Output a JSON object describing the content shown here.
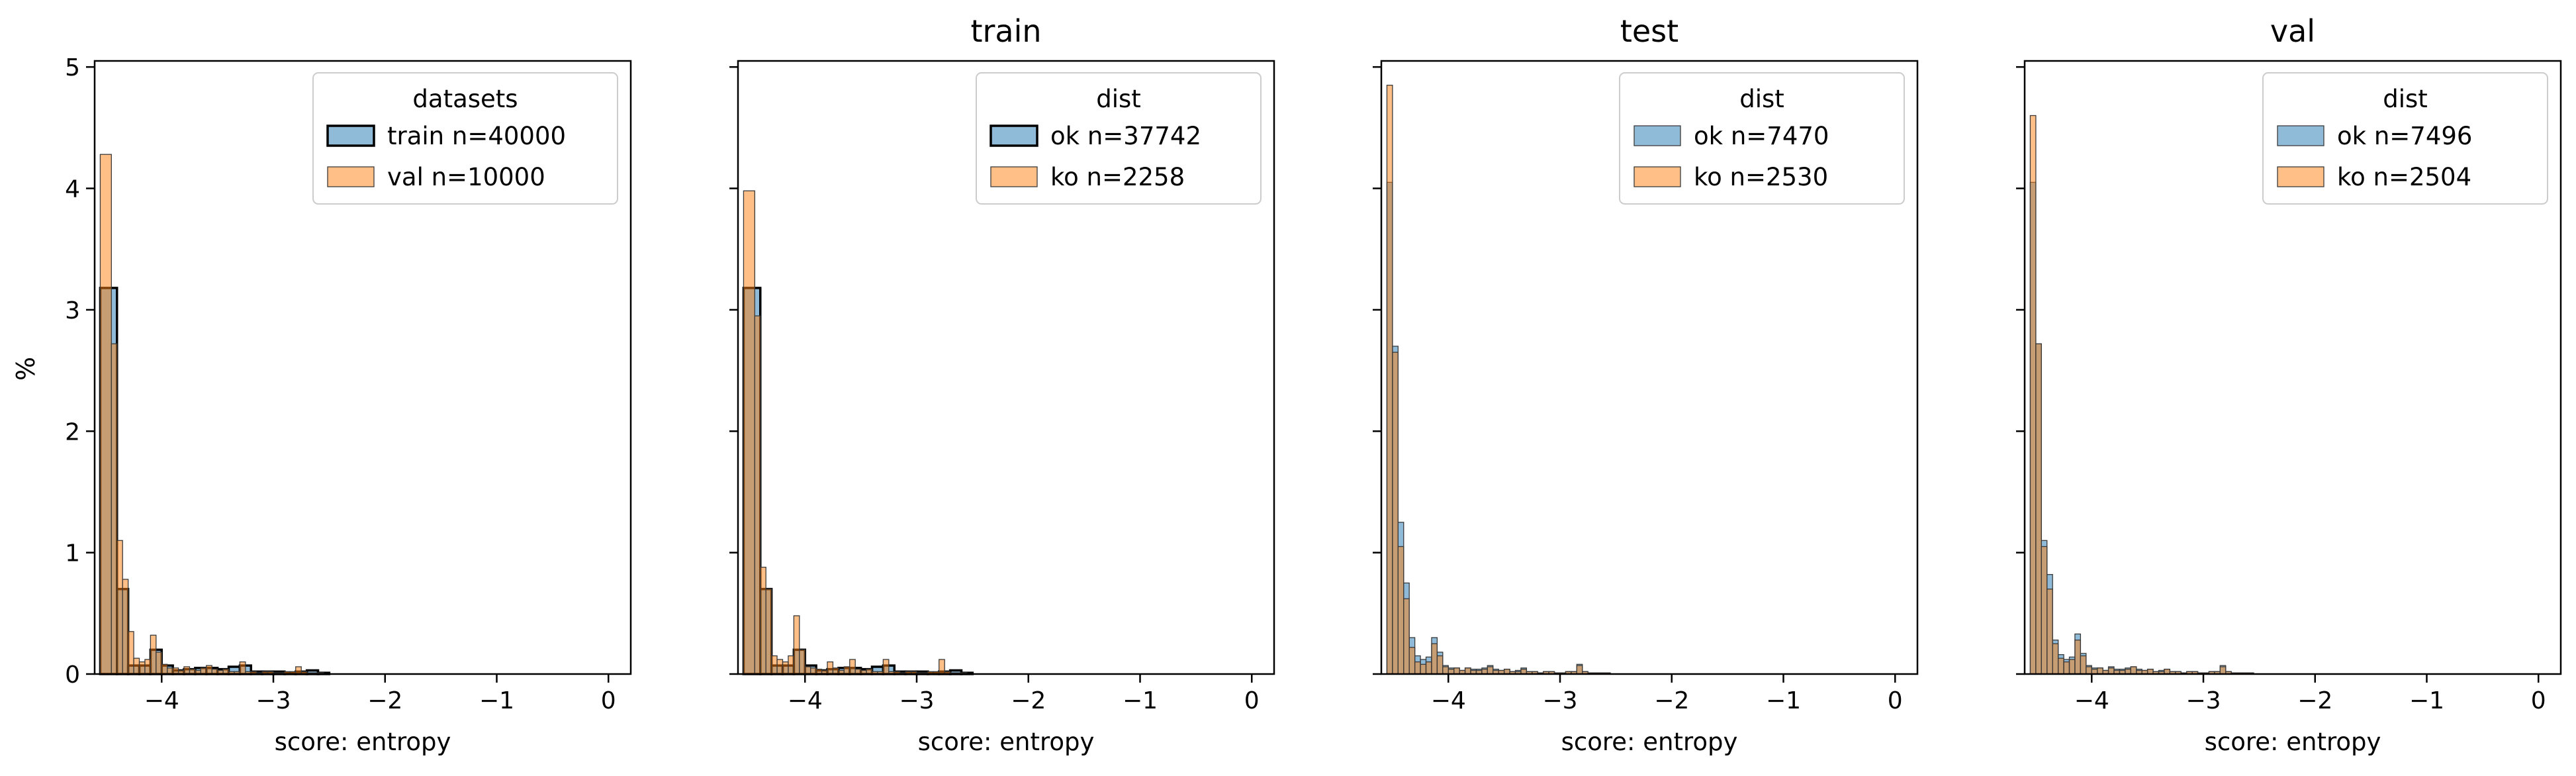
{
  "figure": {
    "shared_y_label": "%",
    "x_label": "score: entropy"
  },
  "chart_data": [
    {
      "type": "bar",
      "title": "",
      "xlabel": "score: entropy",
      "ylabel": "%",
      "xlim": [
        -4.6,
        0.2
      ],
      "ylim": [
        0,
        5.05
      ],
      "x_ticks": [
        -4,
        -3,
        -2,
        -1,
        0
      ],
      "y_ticks": [
        0,
        1,
        2,
        3,
        4,
        5
      ],
      "legend": {
        "title": "datasets",
        "placement": "top-right"
      },
      "series": [
        {
          "name": "train n=40000",
          "color": "#1f77b4",
          "outlined": true,
          "bin_edges": [
            -4.55,
            -4.4,
            -4.3,
            -4.2,
            -4.1,
            -4.0,
            -3.9,
            -3.8,
            -3.7,
            -3.6,
            -3.5,
            -3.4,
            -3.3,
            -3.2,
            -3.1,
            -3.0,
            -2.9,
            -2.8,
            -2.7,
            -2.6,
            -2.5
          ],
          "values": [
            3.18,
            0.7,
            0.07,
            0.07,
            0.2,
            0.07,
            0.03,
            0.04,
            0.05,
            0.05,
            0.04,
            0.06,
            0.07,
            0.02,
            0.02,
            0.02,
            0.01,
            0.02,
            0.03,
            0.01
          ]
        },
        {
          "name": "val n=10000",
          "color": "#ff7f0e",
          "outlined": false,
          "bin_edges": [
            -4.55,
            -4.45,
            -4.4,
            -4.35,
            -4.3,
            -4.25,
            -4.2,
            -4.15,
            -4.1,
            -4.05,
            -4.0,
            -3.95,
            -3.9,
            -3.85,
            -3.8,
            -3.75,
            -3.7,
            -3.65,
            -3.6,
            -3.55,
            -3.5,
            -3.45,
            -3.4,
            -3.35,
            -3.3,
            -3.25,
            -3.2,
            -3.15,
            -3.1,
            -3.05,
            -3.0,
            -2.95,
            -2.9,
            -2.85,
            -2.8,
            -2.75,
            -2.7,
            -2.65,
            -2.6,
            -2.55
          ],
          "values": [
            4.28,
            2.72,
            1.1,
            0.78,
            0.35,
            0.13,
            0.1,
            0.12,
            0.32,
            0.18,
            0.08,
            0.05,
            0.05,
            0.03,
            0.06,
            0.04,
            0.03,
            0.05,
            0.07,
            0.04,
            0.03,
            0.04,
            0.02,
            0.02,
            0.1,
            0.02,
            0.02,
            0.01,
            0.02,
            0.02,
            0.01,
            0.01,
            0.02,
            0.02,
            0.06,
            0.02,
            0.01,
            0.01,
            0.01
          ]
        }
      ]
    },
    {
      "type": "bar",
      "title": "train",
      "xlabel": "score: entropy",
      "xlim": [
        -4.6,
        0.2
      ],
      "ylim": [
        0,
        5.05
      ],
      "x_ticks": [
        -4,
        -3,
        -2,
        -1,
        0
      ],
      "y_ticks": [
        0,
        1,
        2,
        3,
        4,
        5
      ],
      "legend": {
        "title": "dist",
        "placement": "top-right"
      },
      "series": [
        {
          "name": "ok n=37742",
          "color": "#1f77b4",
          "outlined": true,
          "bin_edges": [
            -4.55,
            -4.4,
            -4.3,
            -4.2,
            -4.1,
            -4.0,
            -3.9,
            -3.8,
            -3.7,
            -3.6,
            -3.5,
            -3.4,
            -3.3,
            -3.2,
            -3.1,
            -3.0,
            -2.9,
            -2.8,
            -2.7,
            -2.6,
            -2.5
          ],
          "values": [
            3.18,
            0.7,
            0.07,
            0.07,
            0.2,
            0.07,
            0.03,
            0.04,
            0.05,
            0.05,
            0.04,
            0.06,
            0.07,
            0.02,
            0.02,
            0.02,
            0.01,
            0.02,
            0.03,
            0.01
          ]
        },
        {
          "name": "ko n=2258",
          "color": "#ff7f0e",
          "outlined": false,
          "bin_edges": [
            -4.55,
            -4.45,
            -4.4,
            -4.35,
            -4.3,
            -4.25,
            -4.2,
            -4.15,
            -4.1,
            -4.05,
            -4.0,
            -3.95,
            -3.9,
            -3.85,
            -3.8,
            -3.75,
            -3.7,
            -3.65,
            -3.6,
            -3.55,
            -3.5,
            -3.45,
            -3.4,
            -3.35,
            -3.3,
            -3.25,
            -3.2,
            -3.15,
            -3.1,
            -3.05,
            -3.0,
            -2.95,
            -2.9,
            -2.85,
            -2.8,
            -2.75,
            -2.7,
            -2.65,
            -2.6,
            -2.55
          ],
          "values": [
            3.98,
            2.95,
            0.88,
            0.7,
            0.15,
            0.12,
            0.1,
            0.15,
            0.48,
            0.2,
            0.06,
            0.05,
            0.04,
            0.03,
            0.1,
            0.05,
            0.03,
            0.06,
            0.12,
            0.04,
            0.03,
            0.04,
            0.02,
            0.02,
            0.12,
            0.02,
            0.02,
            0.01,
            0.02,
            0.02,
            0.01,
            0.01,
            0.02,
            0.02,
            0.12,
            0.02,
            0.01,
            0.01,
            0.01
          ]
        }
      ]
    },
    {
      "type": "bar",
      "title": "test",
      "xlabel": "score: entropy",
      "xlim": [
        -4.6,
        0.2
      ],
      "ylim": [
        0,
        5.05
      ],
      "x_ticks": [
        -4,
        -3,
        -2,
        -1,
        0
      ],
      "y_ticks": [
        0,
        1,
        2,
        3,
        4,
        5
      ],
      "legend": {
        "title": "dist",
        "placement": "top-right"
      },
      "series": [
        {
          "name": "ok n=7470",
          "color": "#1f77b4",
          "outlined": false,
          "bin_edges": [
            -4.55,
            -4.5,
            -4.45,
            -4.4,
            -4.35,
            -4.3,
            -4.25,
            -4.2,
            -4.15,
            -4.1,
            -4.05,
            -4.0,
            -3.95,
            -3.9,
            -3.85,
            -3.8,
            -3.75,
            -3.7,
            -3.65,
            -3.6,
            -3.55,
            -3.5,
            -3.45,
            -3.4,
            -3.35,
            -3.3,
            -3.25,
            -3.2,
            -3.15,
            -3.1,
            -3.05,
            -3.0,
            -2.95,
            -2.9,
            -2.85,
            -2.8,
            -2.75,
            -2.7,
            -2.65,
            -2.6,
            -2.55
          ],
          "values": [
            4.05,
            2.7,
            1.25,
            0.75,
            0.3,
            0.15,
            0.12,
            0.14,
            0.3,
            0.18,
            0.07,
            0.05,
            0.05,
            0.03,
            0.05,
            0.04,
            0.04,
            0.05,
            0.07,
            0.04,
            0.03,
            0.04,
            0.02,
            0.03,
            0.05,
            0.02,
            0.02,
            0.01,
            0.02,
            0.02,
            0.01,
            0.01,
            0.02,
            0.02,
            0.08,
            0.02,
            0.01,
            0.01,
            0.01,
            0.01
          ]
        },
        {
          "name": "ko n=2530",
          "color": "#ff7f0e",
          "outlined": false,
          "bin_edges": [
            -4.55,
            -4.5,
            -4.45,
            -4.4,
            -4.35,
            -4.3,
            -4.25,
            -4.2,
            -4.15,
            -4.1,
            -4.05,
            -4.0,
            -3.95,
            -3.9,
            -3.85,
            -3.8,
            -3.75,
            -3.7,
            -3.65,
            -3.6,
            -3.55,
            -3.5,
            -3.45,
            -3.4,
            -3.35,
            -3.3,
            -3.25,
            -3.2,
            -3.15,
            -3.1,
            -3.05,
            -3.0,
            -2.95,
            -2.9,
            -2.85,
            -2.8,
            -2.75,
            -2.7,
            -2.65,
            -2.6,
            -2.55
          ],
          "values": [
            4.85,
            2.65,
            1.05,
            0.62,
            0.22,
            0.1,
            0.08,
            0.1,
            0.25,
            0.15,
            0.06,
            0.04,
            0.05,
            0.03,
            0.05,
            0.03,
            0.03,
            0.04,
            0.06,
            0.03,
            0.03,
            0.04,
            0.02,
            0.02,
            0.04,
            0.02,
            0.02,
            0.01,
            0.02,
            0.02,
            0.01,
            0.01,
            0.02,
            0.02,
            0.07,
            0.02,
            0.01,
            0.01,
            0.01,
            0.01
          ]
        }
      ]
    },
    {
      "type": "bar",
      "title": "val",
      "xlabel": "score: entropy",
      "xlim": [
        -4.6,
        0.2
      ],
      "ylim": [
        0,
        5.05
      ],
      "x_ticks": [
        -4,
        -3,
        -2,
        -1,
        0
      ],
      "y_ticks": [
        0,
        1,
        2,
        3,
        4,
        5
      ],
      "legend": {
        "title": "dist",
        "placement": "top-right"
      },
      "series": [
        {
          "name": "ok n=7496",
          "color": "#1f77b4",
          "outlined": false,
          "bin_edges": [
            -4.55,
            -4.5,
            -4.45,
            -4.4,
            -4.35,
            -4.3,
            -4.25,
            -4.2,
            -4.15,
            -4.1,
            -4.05,
            -4.0,
            -3.95,
            -3.9,
            -3.85,
            -3.8,
            -3.75,
            -3.7,
            -3.65,
            -3.6,
            -3.55,
            -3.5,
            -3.45,
            -3.4,
            -3.35,
            -3.3,
            -3.25,
            -3.2,
            -3.15,
            -3.1,
            -3.05,
            -3.0,
            -2.95,
            -2.9,
            -2.85,
            -2.8,
            -2.75,
            -2.7,
            -2.65,
            -2.6,
            -2.55
          ],
          "values": [
            4.05,
            2.72,
            1.1,
            0.82,
            0.28,
            0.16,
            0.12,
            0.14,
            0.33,
            0.17,
            0.07,
            0.05,
            0.05,
            0.03,
            0.06,
            0.04,
            0.04,
            0.05,
            0.06,
            0.04,
            0.03,
            0.04,
            0.02,
            0.03,
            0.04,
            0.02,
            0.02,
            0.01,
            0.02,
            0.02,
            0.01,
            0.01,
            0.02,
            0.02,
            0.07,
            0.02,
            0.01,
            0.01,
            0.01,
            0.01
          ]
        },
        {
          "name": "ko n=2504",
          "color": "#ff7f0e",
          "outlined": false,
          "bin_edges": [
            -4.55,
            -4.5,
            -4.45,
            -4.4,
            -4.35,
            -4.3,
            -4.25,
            -4.2,
            -4.15,
            -4.1,
            -4.05,
            -4.0,
            -3.95,
            -3.9,
            -3.85,
            -3.8,
            -3.75,
            -3.7,
            -3.65,
            -3.6,
            -3.55,
            -3.5,
            -3.45,
            -3.4,
            -3.35,
            -3.3,
            -3.25,
            -3.2,
            -3.15,
            -3.1,
            -3.05,
            -3.0,
            -2.95,
            -2.9,
            -2.85,
            -2.8,
            -2.75,
            -2.7,
            -2.65,
            -2.6,
            -2.55
          ],
          "values": [
            4.6,
            2.72,
            1.05,
            0.7,
            0.25,
            0.13,
            0.1,
            0.12,
            0.28,
            0.15,
            0.06,
            0.04,
            0.05,
            0.03,
            0.05,
            0.03,
            0.03,
            0.04,
            0.06,
            0.03,
            0.03,
            0.04,
            0.02,
            0.02,
            0.04,
            0.02,
            0.02,
            0.01,
            0.02,
            0.02,
            0.01,
            0.01,
            0.02,
            0.02,
            0.06,
            0.02,
            0.01,
            0.01,
            0.01,
            0.01
          ]
        }
      ]
    }
  ]
}
